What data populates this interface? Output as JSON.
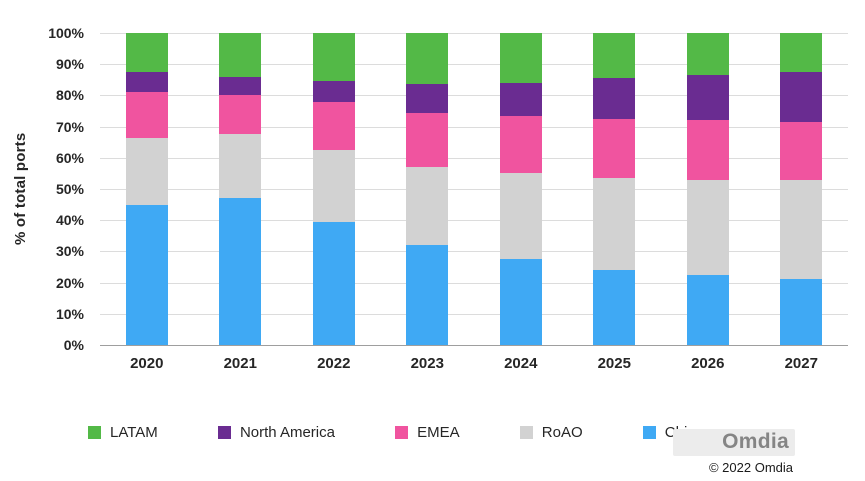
{
  "chart_data": {
    "type": "bar",
    "stacked": true,
    "normalized": true,
    "title": "",
    "xlabel": "",
    "ylabel": "% of total ports",
    "ylim": [
      0,
      100
    ],
    "grid": "horizontal",
    "legend_position": "bottom",
    "y_ticks": [
      "100%",
      "90%",
      "80%",
      "70%",
      "60%",
      "50%",
      "40%",
      "30%",
      "20%",
      "10%",
      "0%"
    ],
    "categories": [
      "2020",
      "2021",
      "2022",
      "2023",
      "2024",
      "2025",
      "2026",
      "2027"
    ],
    "series": [
      {
        "name": "LATAM",
        "color": "#53b947",
        "values": [
          12.5,
          14,
          15.5,
          16.5,
          16,
          14.5,
          13.5,
          12.5
        ]
      },
      {
        "name": "North America",
        "color": "#6a2c91",
        "values": [
          6.5,
          6,
          6.5,
          9,
          10.5,
          13,
          14.5,
          16
        ]
      },
      {
        "name": "EMEA",
        "color": "#f0549f",
        "values": [
          14.5,
          12.5,
          15.5,
          17.5,
          18.5,
          19,
          19,
          18.5
        ]
      },
      {
        "name": "RoAO",
        "color": "#d2d2d2",
        "values": [
          21.5,
          20.5,
          23,
          25,
          27.5,
          29.5,
          30.5,
          32
        ]
      },
      {
        "name": "China",
        "color": "#3fa9f4",
        "values": [
          45,
          47,
          39.5,
          32,
          27.5,
          24,
          22.5,
          21
        ]
      }
    ]
  },
  "footer": {
    "watermark": "Omdia",
    "copyright": "© 2022 Omdia"
  }
}
